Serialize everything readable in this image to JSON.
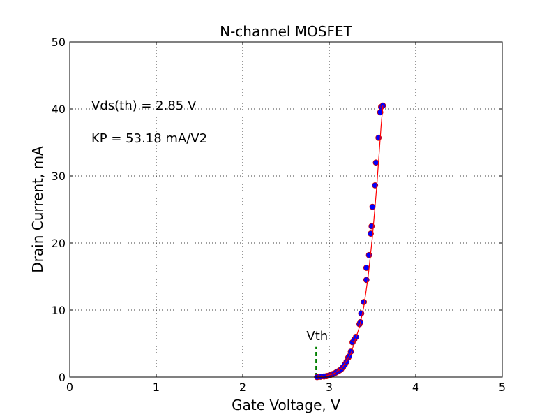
{
  "chart_data": {
    "type": "scatter",
    "title": "N-channel MOSFET",
    "xlabel": "Gate Voltage, V",
    "ylabel": "Drain Current, mA",
    "xlim": [
      0,
      5
    ],
    "ylim": [
      0,
      50
    ],
    "xticks": [
      0,
      1,
      2,
      3,
      4,
      5
    ],
    "yticks": [
      0,
      10,
      20,
      30,
      40,
      50
    ],
    "grid": true,
    "annotations": {
      "vth_text": "Vds(th) = 2.85 V",
      "kp_text": "KP = 53.18 mA/V2",
      "vth_marker_label": "Vth",
      "vth_value": 2.85,
      "vth_marker_top": 4.5
    },
    "series": [
      {
        "kind": "points",
        "color": "#0000ff",
        "edge_color": "#cc0000",
        "x": [
          2.86,
          2.9,
          2.94,
          2.97,
          3.0,
          3.02,
          3.04,
          3.06,
          3.08,
          3.1,
          3.12,
          3.14,
          3.16,
          3.18,
          3.2,
          3.22,
          3.23,
          3.25,
          3.27,
          3.29,
          3.31,
          3.35,
          3.36,
          3.37,
          3.4,
          3.43,
          3.43,
          3.46,
          3.48,
          3.49,
          3.5,
          3.53,
          3.54,
          3.57,
          3.59,
          3.6,
          3.62
        ],
        "y": [
          0.0,
          0.05,
          0.1,
          0.15,
          0.25,
          0.35,
          0.45,
          0.55,
          0.7,
          0.85,
          1.0,
          1.2,
          1.5,
          1.85,
          2.3,
          2.9,
          3.1,
          3.8,
          5.2,
          5.6,
          6.0,
          7.9,
          8.2,
          9.5,
          11.2,
          14.5,
          16.3,
          18.2,
          21.4,
          22.5,
          25.4,
          28.6,
          32.0,
          35.7,
          39.5,
          40.3,
          40.5
        ]
      },
      {
        "kind": "fit-line",
        "color": "#ff0000",
        "x": [
          2.86,
          2.95,
          3.05,
          3.15,
          3.25,
          3.35,
          3.4,
          3.45,
          3.5,
          3.55,
          3.6,
          3.62
        ],
        "y": [
          0.0,
          0.15,
          0.5,
          1.4,
          3.5,
          7.5,
          10.5,
          15.0,
          21.0,
          28.5,
          37.5,
          40.5
        ]
      },
      {
        "kind": "vth-marker",
        "color": "#008000"
      }
    ]
  }
}
